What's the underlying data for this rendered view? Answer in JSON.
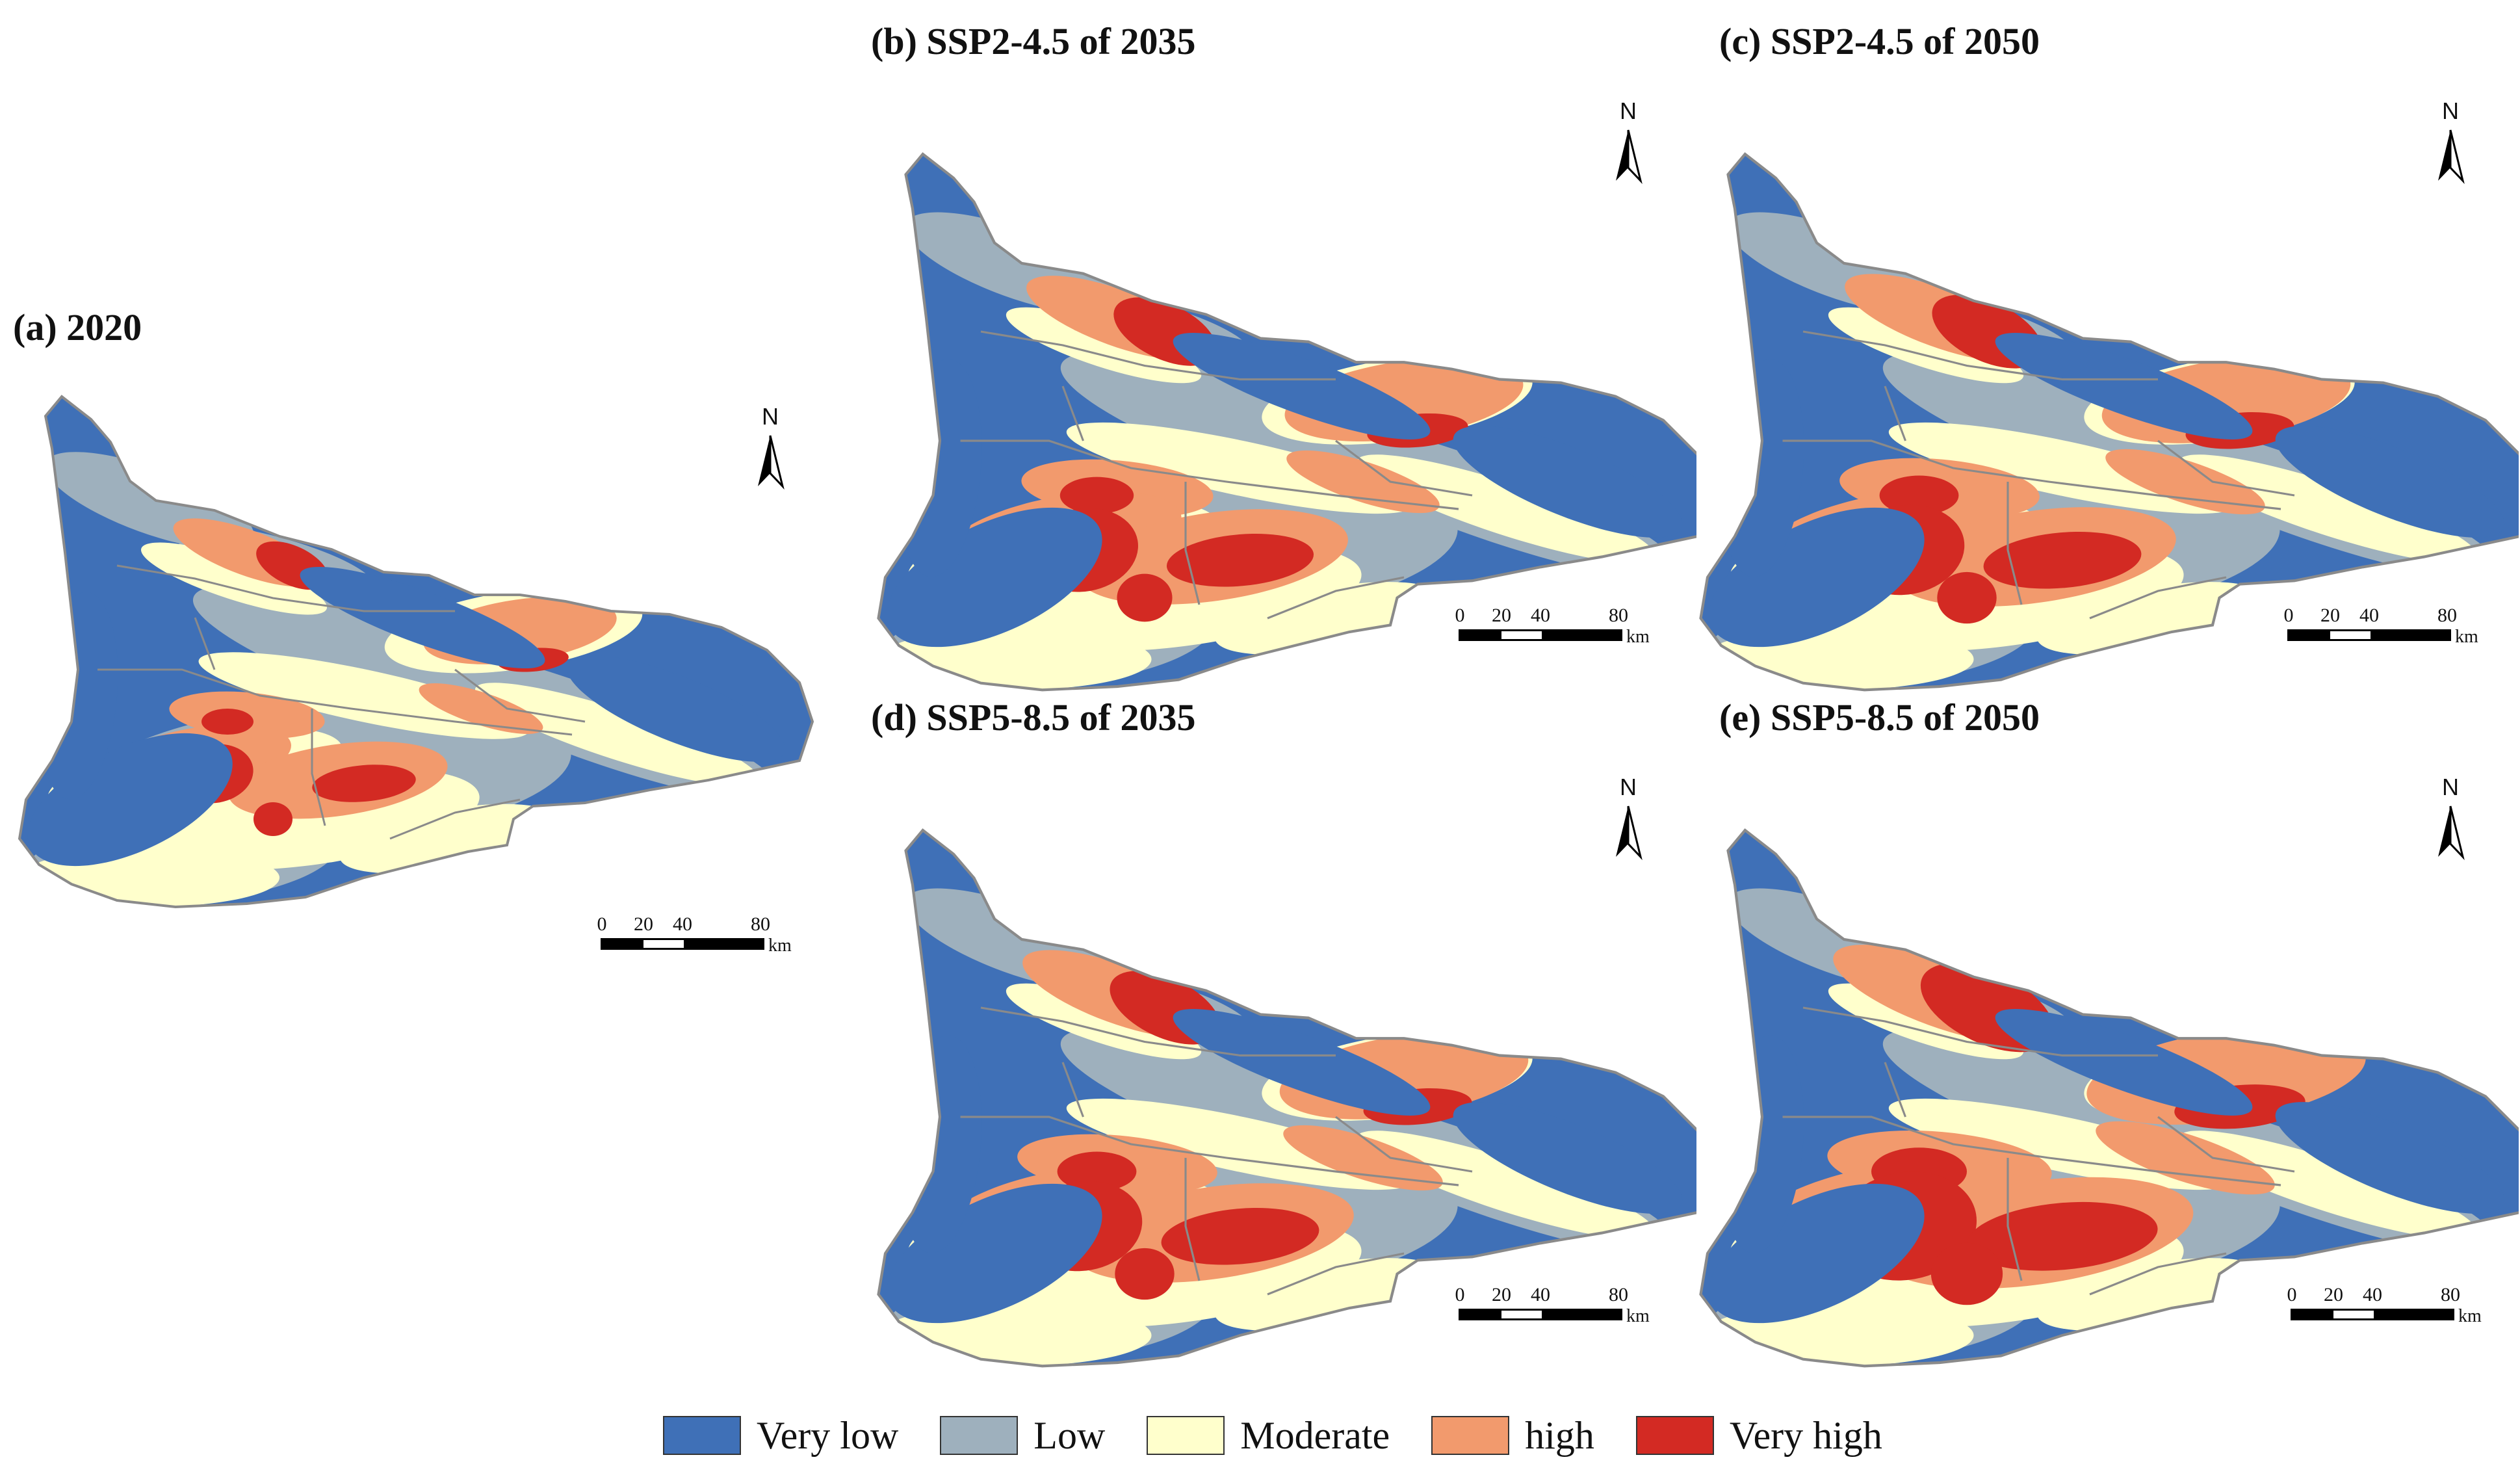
{
  "colors": {
    "very_low": "#3f70b7",
    "low": "#9eb0bd",
    "moderate": "#ffffcc",
    "high": "#f29a6d",
    "very_high": "#d32a23",
    "boundary": "#8a8a8a"
  },
  "panels": [
    {
      "id": "a",
      "title": "(a) 2020"
    },
    {
      "id": "b",
      "title": "(b) SSP2-4.5 of 2035"
    },
    {
      "id": "c",
      "title": "(c) SSP2-4.5 of 2050"
    },
    {
      "id": "d",
      "title": "(d) SSP5-8.5 of 2035"
    },
    {
      "id": "e",
      "title": "(e) SSP5-8.5 of 2050"
    }
  ],
  "north_arrow": {
    "label": "N"
  },
  "scale_bar": {
    "ticks": [
      "0",
      "20",
      "40",
      "80"
    ],
    "unit": "km"
  },
  "legend": [
    {
      "label": "Very low",
      "color_key": "very_low"
    },
    {
      "label": "Low",
      "color_key": "low"
    },
    {
      "label": "Moderate",
      "color_key": "moderate"
    },
    {
      "label": "high",
      "color_key": "high"
    },
    {
      "label": "Very high",
      "color_key": "very_high"
    }
  ]
}
